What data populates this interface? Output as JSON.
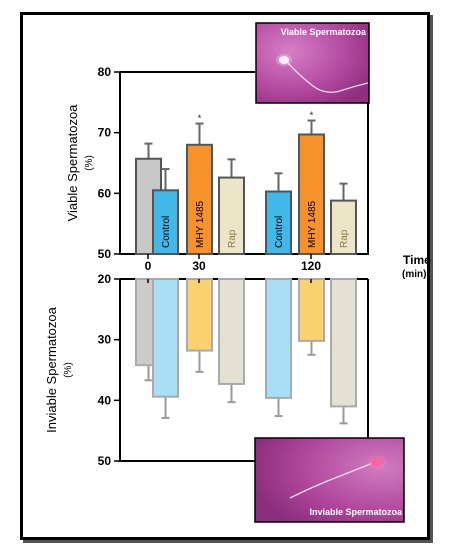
{
  "chart_data": [
    {
      "type": "bar",
      "panel": "viable",
      "ylabel": "Viable Spermatozoa",
      "yunit": "(%)",
      "ylim": [
        50,
        80
      ],
      "yticks": [
        50,
        60,
        70,
        80
      ],
      "xlabel": "Time",
      "xunit": "(min)",
      "timepoints": [
        "0",
        "30",
        "120"
      ],
      "bars": [
        {
          "label": "",
          "time": "0",
          "value": 65.7,
          "error": 2.5,
          "color": "#c8c8c8",
          "sig": ""
        },
        {
          "label": "Control",
          "time": "30",
          "value": 60.5,
          "error": 3.5,
          "color": "#41b8e8",
          "sig": ""
        },
        {
          "label": "MHY 1485",
          "time": "30",
          "value": 68.0,
          "error": 3.5,
          "color": "#f7922a",
          "sig": "*"
        },
        {
          "label": "Rap",
          "time": "30",
          "value": 62.6,
          "error": 3.0,
          "color": "#ece5c8",
          "sig": ""
        },
        {
          "label": "Control",
          "time": "120",
          "value": 60.3,
          "error": 3.0,
          "color": "#41b8e8",
          "sig": ""
        },
        {
          "label": "MHY 1485",
          "time": "120",
          "value": 69.7,
          "error": 2.3,
          "color": "#f7922a",
          "sig": "*"
        },
        {
          "label": "Rap",
          "time": "120",
          "value": 58.8,
          "error": 2.8,
          "color": "#ece5c8",
          "sig": ""
        }
      ]
    },
    {
      "type": "bar",
      "panel": "inviable",
      "orientation": "downward",
      "ylabel": "Inviable Spermatozoa",
      "yunit": "(%)",
      "ylim": [
        20,
        50
      ],
      "yticks": [
        20,
        30,
        40,
        50
      ],
      "bars": [
        {
          "time": "0",
          "value": 34.2,
          "error": 2.5,
          "color": "#cccccc"
        },
        {
          "time": "30",
          "value": 39.4,
          "error": 3.5,
          "color": "#a8dff5"
        },
        {
          "time": "30",
          "value": 31.8,
          "error": 3.5,
          "color": "#fcd170"
        },
        {
          "time": "30",
          "value": 37.3,
          "error": 3.0,
          "color": "#e5e1d2"
        },
        {
          "time": "120",
          "value": 39.6,
          "error": 3.0,
          "color": "#a8dff5"
        },
        {
          "time": "120",
          "value": 30.2,
          "error": 2.3,
          "color": "#fcd170"
        },
        {
          "time": "120",
          "value": 41.0,
          "error": 2.8,
          "color": "#e5e1d2"
        }
      ]
    }
  ],
  "images": {
    "viable_caption": "Viable Spermatozoa",
    "inviable_caption": "Inviable Spermatozoa",
    "background_color": "#b0469c"
  }
}
